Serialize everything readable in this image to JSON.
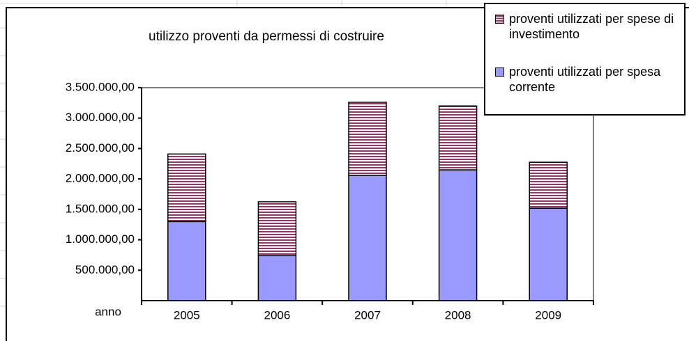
{
  "chart_data": {
    "type": "stacked_bar",
    "title": "utilizzo proventi da permessi di costruire",
    "x_label": "anno",
    "categories": [
      "2005",
      "2006",
      "2007",
      "2008",
      "2009"
    ],
    "series": [
      {
        "name": "proventi utilizzati per spesa corrente",
        "color": "#9999ff",
        "values": [
          1300000,
          740000,
          2060000,
          2150000,
          1520000
        ]
      },
      {
        "name": "proventi utilizzati per spese di investimento",
        "color": "#993366",
        "values": [
          1110000,
          885000,
          1200000,
          1050000,
          755000
        ]
      }
    ],
    "ylim": [
      0,
      3500000
    ],
    "yticks": [
      {
        "value": 500000,
        "label": "500.000,00"
      },
      {
        "value": 1000000,
        "label": "1.000.000,00"
      },
      {
        "value": 1500000,
        "label": "1.500.000,00"
      },
      {
        "value": 2000000,
        "label": "2.000.000,00"
      },
      {
        "value": 2500000,
        "label": "2.500.000,00"
      },
      {
        "value": 3000000,
        "label": "3.000.000,00"
      },
      {
        "value": 3500000,
        "label": "3.500.000,00"
      }
    ],
    "grid": false,
    "legend": "top-right"
  }
}
